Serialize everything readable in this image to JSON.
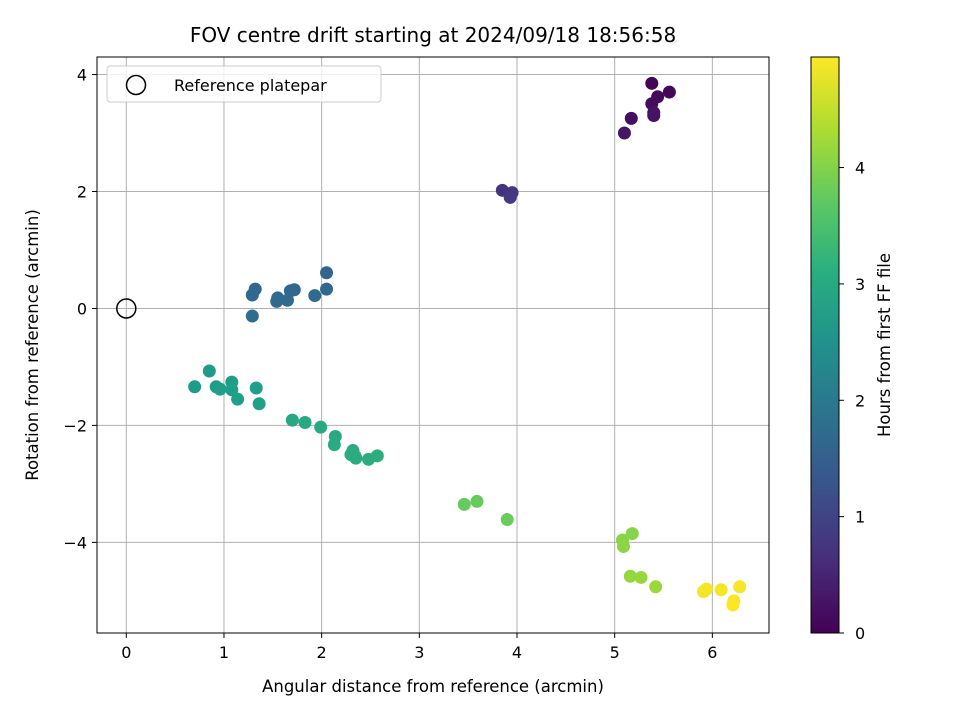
{
  "chart_data": {
    "type": "scatter",
    "title": "FOV centre drift starting at 2024/09/18 18:56:58",
    "xlabel": "Angular distance from reference (arcmin)",
    "ylabel": "Rotation from reference (arcmin)",
    "xlim": [
      -0.3,
      6.58
    ],
    "ylim": [
      -5.55,
      4.3
    ],
    "xticks": [
      0,
      1,
      2,
      3,
      4,
      5,
      6
    ],
    "yticks": [
      -4,
      -2,
      0,
      2,
      4
    ],
    "xtick_labels": [
      "0",
      "1",
      "2",
      "3",
      "4",
      "5",
      "6"
    ],
    "ytick_labels": [
      "−4",
      "−2",
      "0",
      "2",
      "4"
    ],
    "grid": true,
    "legend": {
      "placement": "top-left",
      "entries": [
        {
          "label": "Reference platepar",
          "marker": "open-circle"
        }
      ]
    },
    "reference_point": {
      "x": 0,
      "y": 0
    },
    "colorbar": {
      "label": "Hours from first FF file",
      "colormap": "viridis",
      "range": [
        0,
        4.95
      ],
      "ticks": [
        0,
        1,
        2,
        3,
        4
      ],
      "tick_labels": [
        "0",
        "1",
        "2",
        "3",
        "4"
      ]
    },
    "points": [
      {
        "x": 5.38,
        "y": 3.85,
        "c": 0.05
      },
      {
        "x": 5.56,
        "y": 3.7,
        "c": 0.08
      },
      {
        "x": 5.44,
        "y": 3.62,
        "c": 0.12
      },
      {
        "x": 5.38,
        "y": 3.5,
        "c": 0.15
      },
      {
        "x": 5.17,
        "y": 3.25,
        "c": 0.2
      },
      {
        "x": 5.4,
        "y": 3.35,
        "c": 0.22
      },
      {
        "x": 5.4,
        "y": 3.3,
        "c": 0.25
      },
      {
        "x": 5.1,
        "y": 3.0,
        "c": 0.28
      },
      {
        "x": 3.85,
        "y": 2.02,
        "c": 0.75
      },
      {
        "x": 3.95,
        "y": 1.98,
        "c": 0.8
      },
      {
        "x": 3.93,
        "y": 1.9,
        "c": 0.85
      },
      {
        "x": 2.05,
        "y": 0.61,
        "c": 1.6
      },
      {
        "x": 1.32,
        "y": 0.33,
        "c": 1.62
      },
      {
        "x": 1.72,
        "y": 0.32,
        "c": 1.64
      },
      {
        "x": 2.05,
        "y": 0.33,
        "c": 1.66
      },
      {
        "x": 1.68,
        "y": 0.3,
        "c": 1.67
      },
      {
        "x": 1.29,
        "y": 0.23,
        "c": 1.68
      },
      {
        "x": 1.93,
        "y": 0.22,
        "c": 1.69
      },
      {
        "x": 1.55,
        "y": 0.18,
        "c": 1.7
      },
      {
        "x": 1.65,
        "y": 0.14,
        "c": 1.71
      },
      {
        "x": 1.54,
        "y": 0.12,
        "c": 1.72
      },
      {
        "x": 1.29,
        "y": -0.13,
        "c": 1.73
      },
      {
        "x": 0.85,
        "y": -1.07,
        "c": 2.7
      },
      {
        "x": 0.7,
        "y": -1.34,
        "c": 2.72
      },
      {
        "x": 1.08,
        "y": -1.26,
        "c": 2.74
      },
      {
        "x": 1.33,
        "y": -1.36,
        "c": 2.75
      },
      {
        "x": 0.92,
        "y": -1.34,
        "c": 2.76
      },
      {
        "x": 0.96,
        "y": -1.38,
        "c": 2.77
      },
      {
        "x": 1.08,
        "y": -1.39,
        "c": 2.78
      },
      {
        "x": 1.14,
        "y": -1.55,
        "c": 2.79
      },
      {
        "x": 1.36,
        "y": -1.63,
        "c": 2.8
      },
      {
        "x": 1.7,
        "y": -1.91,
        "c": 2.95
      },
      {
        "x": 1.83,
        "y": -1.95,
        "c": 2.97
      },
      {
        "x": 1.99,
        "y": -2.03,
        "c": 2.99
      },
      {
        "x": 2.14,
        "y": -2.19,
        "c": 3.0
      },
      {
        "x": 2.13,
        "y": -2.33,
        "c": 3.01
      },
      {
        "x": 2.32,
        "y": -2.43,
        "c": 3.02
      },
      {
        "x": 2.3,
        "y": -2.5,
        "c": 3.03
      },
      {
        "x": 2.34,
        "y": -2.52,
        "c": 3.04
      },
      {
        "x": 2.35,
        "y": -2.56,
        "c": 3.05
      },
      {
        "x": 2.48,
        "y": -2.58,
        "c": 3.06
      },
      {
        "x": 2.57,
        "y": -2.52,
        "c": 3.07
      },
      {
        "x": 3.46,
        "y": -3.35,
        "c": 3.75
      },
      {
        "x": 3.59,
        "y": -3.3,
        "c": 3.77
      },
      {
        "x": 3.9,
        "y": -3.61,
        "c": 3.8
      },
      {
        "x": 5.18,
        "y": -3.85,
        "c": 4.05
      },
      {
        "x": 5.08,
        "y": -3.96,
        "c": 4.07
      },
      {
        "x": 5.09,
        "y": -4.07,
        "c": 4.08
      },
      {
        "x": 5.16,
        "y": -4.58,
        "c": 4.15
      },
      {
        "x": 5.27,
        "y": -4.6,
        "c": 4.17
      },
      {
        "x": 5.42,
        "y": -4.76,
        "c": 4.2
      },
      {
        "x": 5.91,
        "y": -4.84,
        "c": 4.85
      },
      {
        "x": 5.94,
        "y": -4.8,
        "c": 4.87
      },
      {
        "x": 6.09,
        "y": -4.81,
        "c": 4.88
      },
      {
        "x": 6.28,
        "y": -4.76,
        "c": 4.9
      },
      {
        "x": 6.22,
        "y": -5.0,
        "c": 4.92
      },
      {
        "x": 6.21,
        "y": -5.07,
        "c": 4.94
      }
    ]
  }
}
